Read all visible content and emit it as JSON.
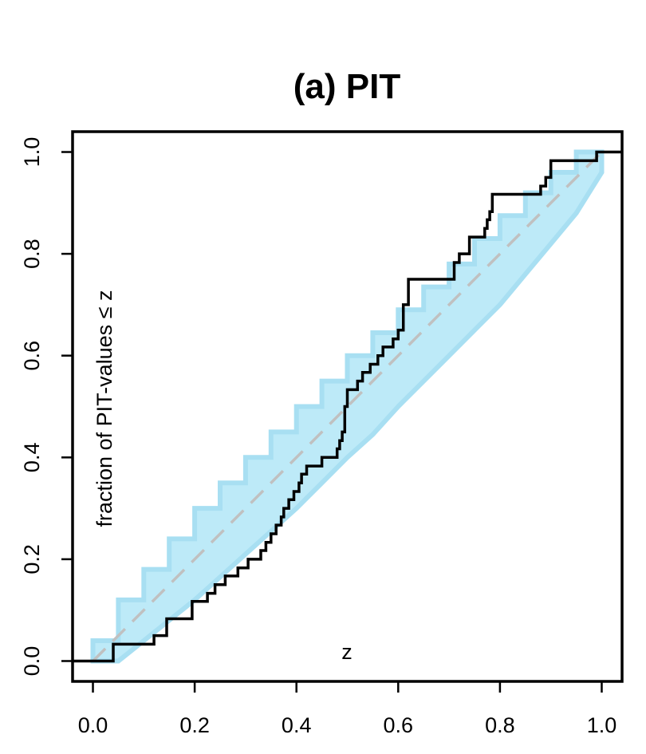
{
  "chart_data": {
    "type": "line",
    "title": "(a) PIT",
    "xlabel": "z",
    "ylabel": "fraction of PIT-values ≤ z",
    "xlim": [
      -0.04,
      1.04
    ],
    "ylim": [
      -0.04,
      1.04
    ],
    "x_ticks": [
      "0.0",
      "0.2",
      "0.4",
      "0.6",
      "0.8",
      "1.0"
    ],
    "y_ticks": [
      "0.0",
      "0.2",
      "0.4",
      "0.6",
      "0.8",
      "1.0"
    ],
    "grid": false,
    "colors": {
      "band": "#bdeaf8",
      "band_edge": "#a8dff2",
      "reference": "#c0c0c0",
      "ecdf": "#000000"
    },
    "series": [
      {
        "type": "step",
        "x": [
          -0.04,
          0.04,
          0.04,
          0.12,
          0.12,
          0.145,
          0.145,
          0.195,
          0.195,
          0.225,
          0.225,
          0.24,
          0.24,
          0.26,
          0.26,
          0.285,
          0.285,
          0.305,
          0.305,
          0.33,
          0.33,
          0.34,
          0.34,
          0.35,
          0.35,
          0.36,
          0.36,
          0.37,
          0.37,
          0.375,
          0.375,
          0.385,
          0.385,
          0.395,
          0.395,
          0.405,
          0.405,
          0.41,
          0.41,
          0.42,
          0.42,
          0.45,
          0.45,
          0.48,
          0.48,
          0.485,
          0.485,
          0.49,
          0.49,
          0.495,
          0.495,
          0.5,
          0.5,
          0.52,
          0.52,
          0.53,
          0.53,
          0.545,
          0.545,
          0.56,
          0.56,
          0.57,
          0.57,
          0.59,
          0.59,
          0.6,
          0.6,
          0.61,
          0.61,
          0.62,
          0.62,
          0.71,
          0.71,
          0.72,
          0.72,
          0.74,
          0.74,
          0.77,
          0.77,
          0.775,
          0.775,
          0.78,
          0.78,
          0.785,
          0.785,
          0.88,
          0.88,
          0.89,
          0.89,
          0.9,
          0.9,
          0.99,
          0.99,
          1.04
        ],
        "y": [
          0.0,
          0.0,
          0.033,
          0.033,
          0.05,
          0.05,
          0.083,
          0.083,
          0.117,
          0.117,
          0.133,
          0.133,
          0.15,
          0.15,
          0.167,
          0.167,
          0.183,
          0.183,
          0.2,
          0.2,
          0.217,
          0.217,
          0.233,
          0.233,
          0.25,
          0.25,
          0.267,
          0.267,
          0.283,
          0.283,
          0.3,
          0.3,
          0.317,
          0.317,
          0.333,
          0.333,
          0.35,
          0.35,
          0.367,
          0.367,
          0.383,
          0.383,
          0.4,
          0.4,
          0.417,
          0.417,
          0.433,
          0.433,
          0.45,
          0.45,
          0.5,
          0.5,
          0.533,
          0.533,
          0.55,
          0.55,
          0.567,
          0.567,
          0.583,
          0.583,
          0.6,
          0.6,
          0.617,
          0.617,
          0.633,
          0.633,
          0.65,
          0.65,
          0.7,
          0.7,
          0.75,
          0.75,
          0.783,
          0.783,
          0.8,
          0.8,
          0.833,
          0.833,
          0.85,
          0.85,
          0.867,
          0.867,
          0.883,
          0.883,
          0.917,
          0.917,
          0.933,
          0.933,
          0.95,
          0.95,
          0.983,
          0.983,
          1.0,
          1.0
        ]
      },
      {
        "type": "reference",
        "x": [
          0,
          1
        ],
        "y": [
          0,
          1
        ]
      }
    ],
    "band": {
      "z": [
        0.0,
        0.05,
        0.1,
        0.15,
        0.2,
        0.25,
        0.3,
        0.35,
        0.4,
        0.45,
        0.5,
        0.55,
        0.6,
        0.65,
        0.7,
        0.75,
        0.8,
        0.85,
        0.9,
        0.95,
        1.0
      ],
      "lower": [
        0.0,
        0.0,
        0.04,
        0.08,
        0.12,
        0.165,
        0.21,
        0.255,
        0.3,
        0.35,
        0.4,
        0.445,
        0.5,
        0.55,
        0.6,
        0.65,
        0.7,
        0.76,
        0.82,
        0.88,
        0.96
      ],
      "upper": [
        0.04,
        0.12,
        0.18,
        0.24,
        0.3,
        0.35,
        0.4,
        0.45,
        0.5,
        0.55,
        0.6,
        0.645,
        0.69,
        0.735,
        0.78,
        0.83,
        0.875,
        0.92,
        0.96,
        1.0,
        1.0
      ]
    }
  }
}
